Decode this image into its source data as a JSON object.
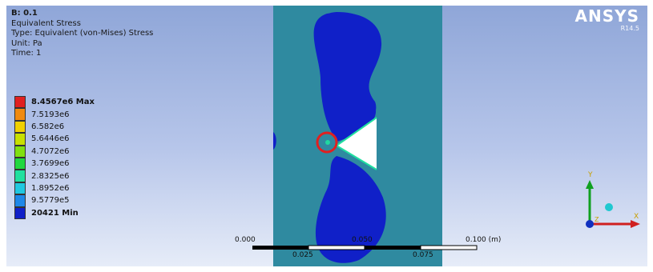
{
  "info": {
    "title": "B: 0.1",
    "result_name": "Equivalent Stress",
    "type": "Type: Equivalent (von-Mises) Stress",
    "unit": "Unit: Pa",
    "time": "Time: 1"
  },
  "legend": {
    "entries": [
      {
        "label": "8.4567e6 Max",
        "color": "#e02020"
      },
      {
        "label": "7.5193e6",
        "color": "#f08a10"
      },
      {
        "label": "6.582e6",
        "color": "#f0d000"
      },
      {
        "label": "5.6446e6",
        "color": "#c8e000"
      },
      {
        "label": "4.7072e6",
        "color": "#80e010"
      },
      {
        "label": "3.7699e6",
        "color": "#20d840"
      },
      {
        "label": "2.8325e6",
        "color": "#20e0a0"
      },
      {
        "label": "1.8952e6",
        "color": "#20c8e0"
      },
      {
        "label": "9.5779e5",
        "color": "#1e88e8"
      },
      {
        "label": "20421 Min",
        "color": "#1020c8"
      }
    ]
  },
  "logo": {
    "brand": "ANSYS",
    "version": "R14.5"
  },
  "scale_bar": {
    "label_0": "0.000",
    "label_050": "0.050",
    "label_100": "0.100 (m)",
    "label_025": "0.025",
    "label_075": "0.075"
  },
  "triad": {
    "y_label": "Y",
    "x_label": "X",
    "z_label": "Z"
  },
  "colors": {
    "model_fill": "#2f8aa0",
    "low_stress": "#1020c8",
    "marker": "#e02020"
  }
}
